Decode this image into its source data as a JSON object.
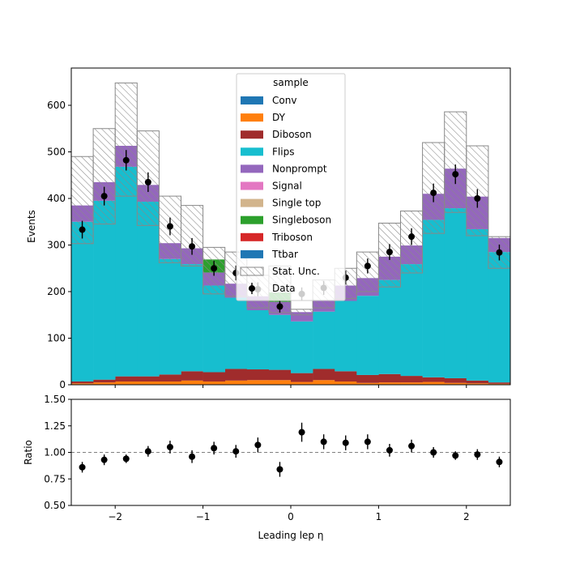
{
  "chart_data": [
    {
      "type": "bar",
      "subtype": "stacked-histogram",
      "title": "",
      "xlabel": "",
      "ylabel": "Events",
      "xlim": [
        -2.5,
        2.5
      ],
      "ylim": [
        0,
        680
      ],
      "yticks": [
        0,
        100,
        200,
        300,
        400,
        500,
        600
      ],
      "bin_edges": [
        -2.5,
        -2.25,
        -2.0,
        -1.75,
        -1.5,
        -1.25,
        -1.0,
        -0.75,
        -0.5,
        -0.25,
        0.0,
        0.25,
        0.5,
        0.75,
        1.0,
        1.25,
        1.5,
        1.75,
        2.0,
        2.25,
        2.5
      ],
      "legend": {
        "title": "sample",
        "placement": "top-center",
        "entries": [
          "Conv",
          "DY",
          "Diboson",
          "Flips",
          "Nonprompt",
          "Signal",
          "Single top",
          "Singleboson",
          "Triboson",
          "Ttbar",
          "Stat. Unc.",
          "Data"
        ]
      },
      "series": [
        {
          "name": "Conv",
          "color": "#1f77b4",
          "values": [
            1,
            1,
            1,
            1,
            1,
            1,
            1,
            1,
            1,
            1,
            1,
            1,
            1,
            1,
            1,
            1,
            1,
            1,
            1,
            1
          ]
        },
        {
          "name": "DY",
          "color": "#ff7f0e",
          "values": [
            2,
            4,
            6,
            6,
            6,
            8,
            6,
            8,
            9,
            9,
            5,
            9,
            6,
            3,
            4,
            4,
            5,
            3,
            2,
            1
          ]
        },
        {
          "name": "Diboson",
          "color": "#a02c2c",
          "values": [
            4,
            6,
            11,
            11,
            15,
            20,
            20,
            25,
            23,
            22,
            19,
            24,
            22,
            17,
            18,
            14,
            10,
            10,
            6,
            3
          ]
        },
        {
          "name": "Flips",
          "color": "#17becf",
          "values": [
            343,
            384,
            450,
            375,
            248,
            230,
            186,
            153,
            127,
            118,
            111,
            123,
            151,
            170,
            202,
            240,
            338,
            365,
            325,
            280
          ]
        },
        {
          "name": "Nonprompt",
          "color": "#9467bd",
          "values": [
            35,
            40,
            45,
            36,
            34,
            34,
            28,
            30,
            30,
            28,
            20,
            25,
            33,
            38,
            50,
            40,
            56,
            85,
            70,
            30
          ]
        },
        {
          "name": "Signal",
          "color": "#e377c2",
          "values": [
            0,
            0,
            0,
            0,
            0,
            0,
            0,
            0,
            0,
            0,
            0,
            0,
            0,
            0,
            0,
            0,
            0,
            0,
            0,
            0
          ]
        },
        {
          "name": "Single top",
          "color": "#d2b48c",
          "values": [
            0,
            0,
            0,
            0,
            0,
            0,
            0,
            0,
            0,
            0,
            0,
            0,
            0,
            0,
            0,
            0,
            0,
            0,
            0,
            0
          ]
        },
        {
          "name": "Singleboson",
          "color": "#2ca02c",
          "values": [
            0,
            0,
            0,
            0,
            0,
            0,
            28,
            0,
            0,
            20,
            0,
            0,
            0,
            0,
            0,
            0,
            0,
            0,
            0,
            0
          ]
        },
        {
          "name": "Triboson",
          "color": "#d62728",
          "values": [
            0,
            0,
            0,
            0,
            0,
            0,
            0,
            0,
            0,
            0,
            0,
            0,
            0,
            0,
            0,
            0,
            0,
            0,
            0,
            0
          ]
        },
        {
          "name": "Ttbar",
          "color": "#1f77b4",
          "values": [
            0,
            0,
            0,
            0,
            0,
            0,
            0,
            0,
            0,
            0,
            0,
            0,
            0,
            0,
            0,
            0,
            0,
            0,
            0,
            0
          ]
        }
      ],
      "stat_unc": {
        "name": "Stat. Unc.",
        "low": [
          303,
          345,
          405,
          342,
          262,
          255,
          195,
          190,
          165,
          155,
          150,
          165,
          185,
          200,
          210,
          240,
          325,
          370,
          320,
          250
        ],
        "high": [
          490,
          550,
          648,
          545,
          405,
          385,
          295,
          285,
          235,
          255,
          162,
          225,
          250,
          285,
          347,
          373,
          520,
          586,
          513,
          318
        ]
      },
      "data_points": {
        "name": "Data",
        "x": [
          -2.375,
          -2.125,
          -1.875,
          -1.625,
          -1.375,
          -1.125,
          -0.875,
          -0.625,
          -0.375,
          -0.125,
          0.125,
          0.375,
          0.625,
          0.875,
          1.125,
          1.375,
          1.625,
          1.875,
          2.125,
          2.375
        ],
        "y": [
          333,
          405,
          482,
          435,
          340,
          297,
          250,
          240,
          205,
          168,
          195,
          208,
          230,
          255,
          285,
          318,
          412,
          452,
          400,
          284
        ],
        "yerr": [
          19,
          20,
          22,
          21,
          19,
          18,
          16,
          16,
          15,
          13,
          14,
          15,
          15,
          16,
          17,
          18,
          20,
          21,
          20,
          17
        ]
      }
    },
    {
      "type": "scatter",
      "title": "",
      "xlabel": "Leading lep η",
      "ylabel": "Ratio",
      "xlim": [
        -2.5,
        2.5
      ],
      "ylim": [
        0.5,
        1.5
      ],
      "xticks": [
        -2,
        -1,
        0,
        1,
        2
      ],
      "xtick_labels": [
        "−2",
        "−1",
        "0",
        "1",
        "2"
      ],
      "yticks": [
        0.5,
        0.75,
        1.0,
        1.25,
        1.5
      ],
      "ytick_labels": [
        "0.50",
        "0.75",
        "1.00",
        "1.25",
        "1.50"
      ],
      "reference_line": 1.0,
      "x": [
        -2.375,
        -2.125,
        -1.875,
        -1.625,
        -1.375,
        -1.125,
        -0.875,
        -0.625,
        -0.375,
        -0.125,
        0.125,
        0.375,
        0.625,
        0.875,
        1.125,
        1.375,
        1.625,
        1.875,
        2.125,
        2.375
      ],
      "y": [
        0.86,
        0.93,
        0.94,
        1.01,
        1.05,
        0.96,
        1.04,
        1.01,
        1.07,
        0.84,
        1.19,
        1.1,
        1.09,
        1.1,
        1.02,
        1.06,
        1.0,
        0.97,
        0.98,
        0.91
      ],
      "yerr": [
        0.05,
        0.05,
        0.04,
        0.05,
        0.06,
        0.06,
        0.06,
        0.06,
        0.07,
        0.07,
        0.09,
        0.07,
        0.07,
        0.07,
        0.06,
        0.06,
        0.05,
        0.04,
        0.05,
        0.05
      ]
    }
  ]
}
